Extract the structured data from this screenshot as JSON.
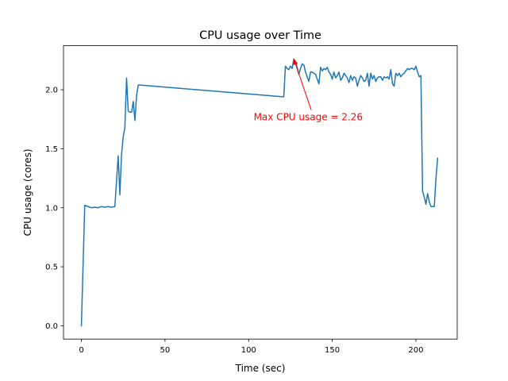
{
  "chart_data": {
    "type": "line",
    "title": "CPU usage over Time",
    "xlabel": "Time (sec)",
    "ylabel": "CPU usage (cores)",
    "xlim": [
      -10.7,
      224.7
    ],
    "ylim": [
      -0.113,
      2.373
    ],
    "xticks": [
      0,
      50,
      100,
      150,
      200
    ],
    "xtick_labels": [
      "0",
      "50",
      "100",
      "150",
      "200"
    ],
    "yticks": [
      0.0,
      0.5,
      1.0,
      1.5,
      2.0
    ],
    "ytick_labels": [
      "0.0",
      "0.5",
      "1.0",
      "1.5",
      "2.0"
    ],
    "grid": false,
    "series": [
      {
        "color": "#1f77b4",
        "x": [
          0,
          2,
          4,
          6,
          8,
          10,
          12,
          14,
          16,
          18,
          20,
          22,
          23,
          24,
          25,
          26,
          27,
          28,
          29,
          30,
          31,
          32,
          33,
          34,
          35,
          121,
          122,
          123,
          124,
          125,
          126,
          127,
          128,
          129,
          130,
          131,
          132,
          133,
          134,
          135,
          136,
          137,
          138,
          139,
          140,
          141,
          142,
          143,
          144,
          145,
          146,
          147,
          148,
          149,
          150,
          151,
          152,
          153,
          154,
          155,
          156,
          157,
          158,
          159,
          160,
          161,
          162,
          163,
          164,
          165,
          166,
          167,
          168,
          169,
          170,
          171,
          172,
          173,
          174,
          175,
          176,
          177,
          178,
          179,
          180,
          181,
          182,
          183,
          184,
          185,
          186,
          187,
          188,
          189,
          190,
          191,
          192,
          193,
          194,
          195,
          196,
          197,
          198,
          199,
          200,
          201,
          202,
          203,
          204,
          205,
          206,
          207,
          208,
          209,
          210,
          211,
          212,
          213
        ],
        "y": [
          0.0,
          1.02,
          1.01,
          1.0,
          1.005,
          1.0,
          1.01,
          1.005,
          1.01,
          1.005,
          1.01,
          1.44,
          1.11,
          1.45,
          1.6,
          1.68,
          2.1,
          1.82,
          1.81,
          1.81,
          1.9,
          1.74,
          1.95,
          2.04,
          2.04,
          1.94,
          2.2,
          2.18,
          2.17,
          2.2,
          2.18,
          2.26,
          2.24,
          2.19,
          2.13,
          2.18,
          2.22,
          2.21,
          2.15,
          2.11,
          2.07,
          2.15,
          2.15,
          2.14,
          2.13,
          2.09,
          2.05,
          2.19,
          2.16,
          2.18,
          2.17,
          2.19,
          2.15,
          2.13,
          2.09,
          2.15,
          2.1,
          2.12,
          2.15,
          2.08,
          2.1,
          2.14,
          2.12,
          2.1,
          2.06,
          2.12,
          2.08,
          2.11,
          2.1,
          2.03,
          2.08,
          2.12,
          2.1,
          2.07,
          2.08,
          2.14,
          2.03,
          2.14,
          2.09,
          2.12,
          2.07,
          2.1,
          2.11,
          2.11,
          2.08,
          2.11,
          2.1,
          2.11,
          2.09,
          2.17,
          2.05,
          2.03,
          2.14,
          2.12,
          2.14,
          2.11,
          2.13,
          2.14,
          2.16,
          2.18,
          2.17,
          2.18,
          2.18,
          2.17,
          2.2,
          2.15,
          2.11,
          2.12,
          1.14,
          1.09,
          1.03,
          1.12,
          1.05,
          1.01,
          1.01,
          1.01,
          1.25,
          1.42
        ]
      }
    ],
    "annotations": [
      {
        "text": "Max CPU usage = 2.26",
        "color": "#ff0000",
        "xy": [
          127,
          2.26
        ],
        "xytext": [
          103,
          1.74
        ]
      }
    ]
  }
}
